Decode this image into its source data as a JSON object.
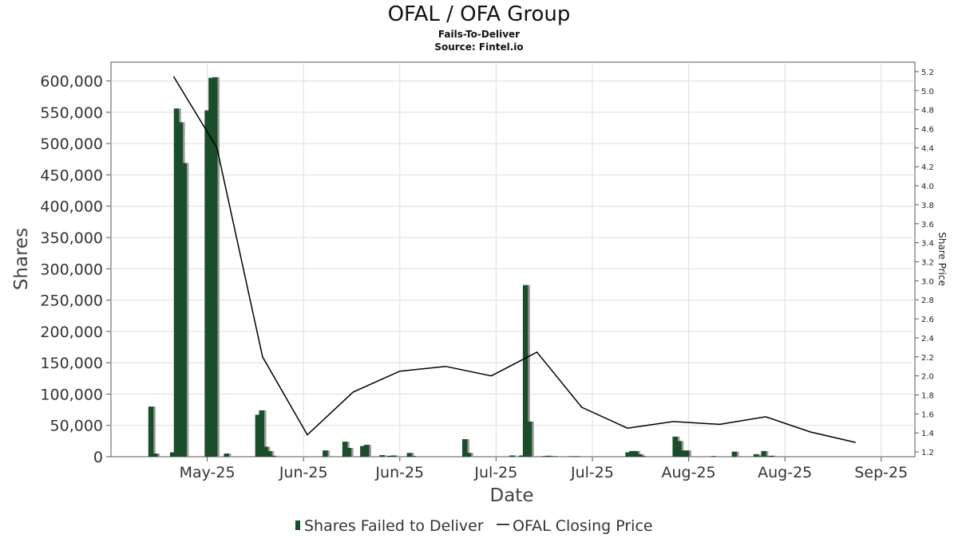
{
  "chart_data": {
    "type": "bar",
    "title": "OFAL / OFA Group",
    "subtitle": "Fails-To-Deliver",
    "source": "Source: Fintel.io",
    "xlabel": "Date",
    "ylabel": "Shares",
    "y2label": "Share Price",
    "ylim": [
      0,
      630000
    ],
    "y2lim": [
      1.15,
      5.3
    ],
    "grid": true,
    "legend_position": "bottom",
    "y_ticks": [
      "0",
      "50,000",
      "100,000",
      "150,000",
      "200,000",
      "250,000",
      "300,000",
      "350,000",
      "400,000",
      "450,000",
      "500,000",
      "550,000",
      "600,000"
    ],
    "y_tick_values": [
      0,
      50000,
      100000,
      150000,
      200000,
      250000,
      300000,
      350000,
      400000,
      450000,
      500000,
      550000,
      600000
    ],
    "y2_ticks": [
      "1.2",
      "1.4",
      "1.6",
      "1.8",
      "2.0",
      "2.2",
      "2.4",
      "2.6",
      "2.8",
      "3.0",
      "3.2",
      "3.4",
      "3.6",
      "3.8",
      "4.0",
      "4.2",
      "4.4",
      "4.6",
      "4.8",
      "5.0",
      "5.2"
    ],
    "y2_tick_values": [
      1.2,
      1.4,
      1.6,
      1.8,
      2.0,
      2.2,
      2.4,
      2.6,
      2.8,
      3.0,
      3.2,
      3.4,
      3.6,
      3.8,
      4.0,
      4.2,
      4.4,
      4.6,
      4.8,
      5.0,
      5.2
    ],
    "x_ticks": [
      "May-25",
      "Jun-25",
      "Jun-25",
      "Jul-25",
      "Jul-25",
      "Aug-25",
      "Aug-25",
      "Sep-25"
    ],
    "x_tick_days": [
      135,
      155,
      175,
      195,
      215,
      235,
      255,
      275
    ],
    "x_range_days": [
      115,
      282
    ],
    "series": [
      {
        "name": "Shares Failed to Deliver",
        "type": "bar",
        "color": "#1a4d2a",
        "data": [
          {
            "day": 123.3,
            "value": 80000
          },
          {
            "day": 124.2,
            "value": 5000
          },
          {
            "day": 127.8,
            "value": 7000
          },
          {
            "day": 128.6,
            "value": 556000
          },
          {
            "day": 129.4,
            "value": 534000
          },
          {
            "day": 130.2,
            "value": 469000
          },
          {
            "day": 135.0,
            "value": 553000
          },
          {
            "day": 135.8,
            "value": 605000
          },
          {
            "day": 136.6,
            "value": 606000
          },
          {
            "day": 139.0,
            "value": 5000
          },
          {
            "day": 145.5,
            "value": 67000
          },
          {
            "day": 146.3,
            "value": 74000
          },
          {
            "day": 147.1,
            "value": 16000
          },
          {
            "day": 147.9,
            "value": 9000
          },
          {
            "day": 148.7,
            "value": 1500
          },
          {
            "day": 159.5,
            "value": 10000
          },
          {
            "day": 163.6,
            "value": 24000
          },
          {
            "day": 164.4,
            "value": 14000
          },
          {
            "day": 167.3,
            "value": 17000
          },
          {
            "day": 168.1,
            "value": 19000
          },
          {
            "day": 171.3,
            "value": 2500
          },
          {
            "day": 172.9,
            "value": 1500
          },
          {
            "day": 173.7,
            "value": 2000
          },
          {
            "day": 177.0,
            "value": 6000
          },
          {
            "day": 177.8,
            "value": 1000
          },
          {
            "day": 188.5,
            "value": 28000
          },
          {
            "day": 189.3,
            "value": 6000
          },
          {
            "day": 198.3,
            "value": 2000
          },
          {
            "day": 200.3,
            "value": 2000
          },
          {
            "day": 201.1,
            "value": 274000
          },
          {
            "day": 201.9,
            "value": 56000
          },
          {
            "day": 205.0,
            "value": 1000
          },
          {
            "day": 205.8,
            "value": 1500
          },
          {
            "day": 206.6,
            "value": 800
          },
          {
            "day": 207.4,
            "value": 600
          },
          {
            "day": 210.5,
            "value": 300
          },
          {
            "day": 211.3,
            "value": 300
          },
          {
            "day": 212.1,
            "value": 300
          },
          {
            "day": 222.4,
            "value": 7000
          },
          {
            "day": 223.2,
            "value": 9000
          },
          {
            "day": 224.0,
            "value": 9000
          },
          {
            "day": 224.8,
            "value": 4000
          },
          {
            "day": 225.6,
            "value": 1000
          },
          {
            "day": 232.2,
            "value": 32000
          },
          {
            "day": 233.0,
            "value": 25000
          },
          {
            "day": 233.8,
            "value": 10000
          },
          {
            "day": 234.6,
            "value": 10000
          },
          {
            "day": 240.2,
            "value": 1000
          },
          {
            "day": 244.5,
            "value": 8000
          },
          {
            "day": 249.0,
            "value": 4000
          },
          {
            "day": 249.8,
            "value": 1000
          },
          {
            "day": 250.6,
            "value": 9000
          },
          {
            "day": 251.4,
            "value": 1000
          },
          {
            "day": 252.2,
            "value": 1500
          }
        ]
      },
      {
        "name": "OFAL Closing Price",
        "type": "line",
        "color": "#000000",
        "data": [
          {
            "day": 128,
            "value": 5.15
          },
          {
            "day": 137,
            "value": 4.4
          },
          {
            "day": 146.5,
            "value": 2.2
          },
          {
            "day": 155.8,
            "value": 1.38
          },
          {
            "day": 165.3,
            "value": 1.83
          },
          {
            "day": 175,
            "value": 2.05
          },
          {
            "day": 184.5,
            "value": 2.1
          },
          {
            "day": 194,
            "value": 2.0
          },
          {
            "day": 203.5,
            "value": 2.25
          },
          {
            "day": 212.8,
            "value": 1.67
          },
          {
            "day": 222.3,
            "value": 1.45
          },
          {
            "day": 231.8,
            "value": 1.52
          },
          {
            "day": 241.5,
            "value": 1.49
          },
          {
            "day": 251,
            "value": 1.57
          },
          {
            "day": 260.3,
            "value": 1.41
          },
          {
            "day": 269.7,
            "value": 1.3
          }
        ]
      }
    ]
  },
  "legend": {
    "bar_label": "Shares Failed to Deliver",
    "line_label": "OFAL Closing Price"
  }
}
